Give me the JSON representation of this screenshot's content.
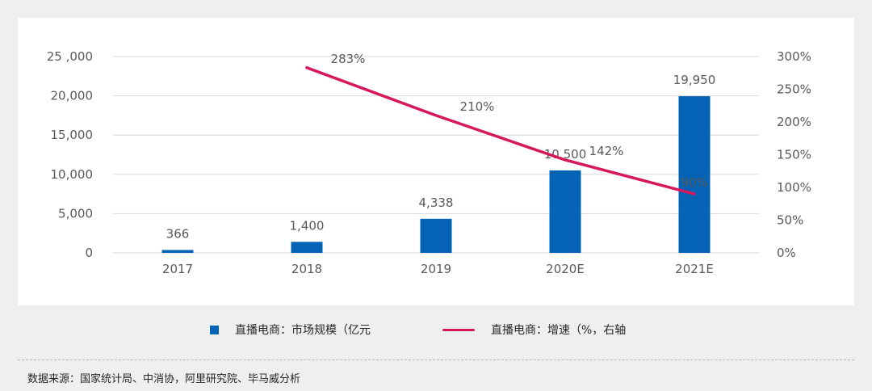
{
  "chart_data": {
    "type": "bar+line",
    "categories": [
      "2017",
      "2018",
      "2019",
      "2020E",
      "2021E"
    ],
    "series": [
      {
        "name": "直播电商：市场规模（亿元",
        "type": "bar",
        "axis": "left",
        "values": [
          366,
          1400,
          4338,
          10500,
          19950
        ],
        "labels": [
          "366",
          "1,400",
          "4,338",
          "10,500",
          "19,950"
        ],
        "color": "#0563b5"
      },
      {
        "name": "直播电商：增速（%，右轴",
        "type": "line",
        "axis": "right",
        "values": [
          null,
          283,
          210,
          142,
          90
        ],
        "labels": [
          "",
          "283%",
          "210%",
          "142%",
          "90%"
        ],
        "color": "#d6175c"
      }
    ],
    "y_left": {
      "min": 0,
      "max": 25000,
      "ticks": [
        0,
        5000,
        10000,
        15000,
        20000,
        25000
      ],
      "tick_labels": [
        "0",
        "5,000",
        "10,000",
        "15,000",
        "20,000",
        "25 ,000"
      ]
    },
    "y_right": {
      "min": 0,
      "max": 300,
      "ticks": [
        0,
        50,
        100,
        150,
        200,
        250,
        300
      ],
      "tick_labels": [
        "0%",
        "50%",
        "100%",
        "150%",
        "200%",
        "250%",
        "300%"
      ]
    },
    "grid": true,
    "legend_position": "bottom"
  },
  "source_text": "数据来源：国家统计局、中消协，阿里研究院、毕马威分析"
}
